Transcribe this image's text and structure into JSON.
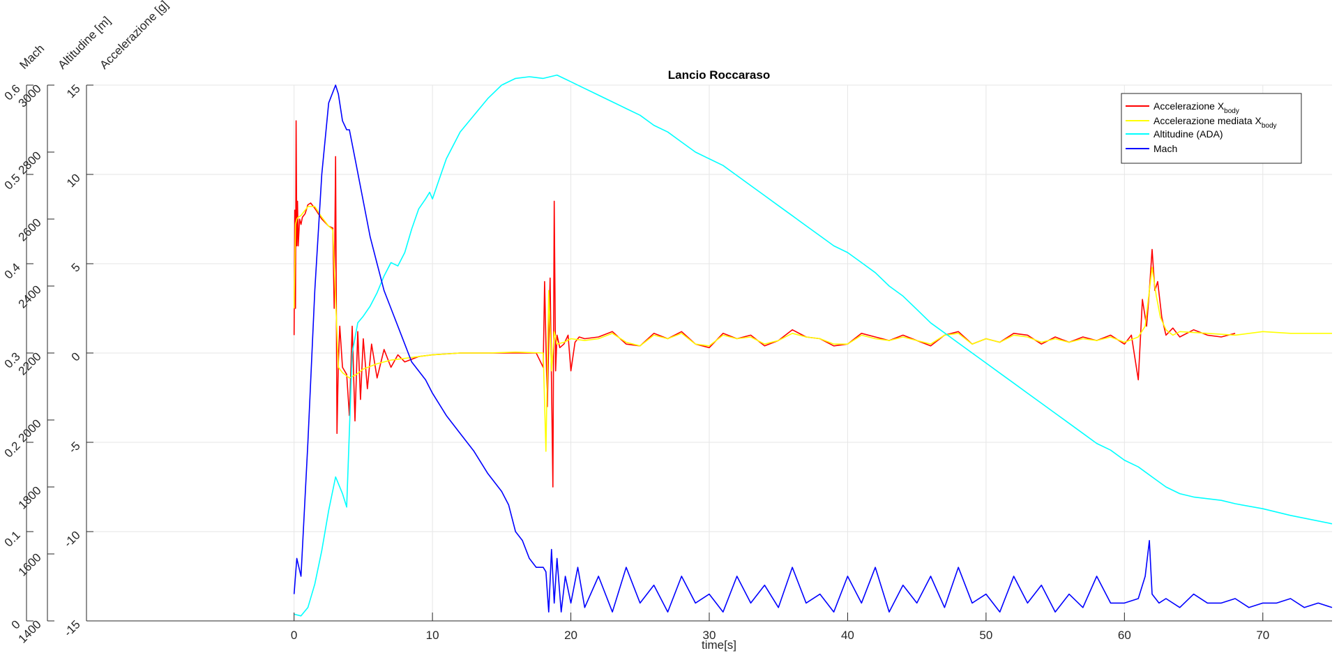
{
  "chart_data": {
    "type": "line",
    "title": "Lancio Roccaraso",
    "xlabel": "time[s]",
    "xlim": [
      -15,
      75
    ],
    "xticks": [
      0,
      10,
      20,
      30,
      40,
      50,
      60,
      70
    ],
    "grid": true,
    "legend_position": "top-right",
    "axes": {
      "accel": {
        "label": "Accelerazione [g]",
        "lim": [
          -15,
          15
        ],
        "ticks": [
          -15,
          -10,
          -5,
          0,
          5,
          10,
          15
        ]
      },
      "alt": {
        "label": "Altitudine [m]",
        "lim": [
          1400,
          3000
        ],
        "ticks": [
          1400,
          1600,
          1800,
          2000,
          2200,
          2400,
          2600,
          2800,
          3000
        ]
      },
      "mach": {
        "label": "Mach",
        "lim": [
          0,
          0.6
        ],
        "ticks": [
          0,
          0.1,
          0.2,
          0.3,
          0.4,
          0.5,
          0.6
        ]
      }
    },
    "legend": [
      {
        "name": "Accelerazione X",
        "sub": "body",
        "color": "#ff0000"
      },
      {
        "name": "Accelerazione mediata X",
        "sub": "body",
        "color": "#ffff00"
      },
      {
        "name": "Altitudine (ADA)",
        "sub": "",
        "color": "#00ffff"
      },
      {
        "name": "Mach",
        "sub": "",
        "color": "#0000ff"
      }
    ],
    "series": [
      {
        "name": "Accelerazione X",
        "axis": "accel",
        "color": "#ff0000",
        "x": [
          0.0,
          0.05,
          0.1,
          0.15,
          0.2,
          0.25,
          0.3,
          0.4,
          0.5,
          0.6,
          0.8,
          1.0,
          1.2,
          1.5,
          2.0,
          2.5,
          2.8,
          2.9,
          3.0,
          3.1,
          3.2,
          3.3,
          3.5,
          3.8,
          4.0,
          4.2,
          4.4,
          4.6,
          4.8,
          5.0,
          5.3,
          5.6,
          6.0,
          6.5,
          7.0,
          7.5,
          8.0,
          9.0,
          10.0,
          12.0,
          14.0,
          16.0,
          17.5,
          18.0,
          18.1,
          18.3,
          18.5,
          18.7,
          18.8,
          18.9,
          19.0,
          19.2,
          19.5,
          19.8,
          20.0,
          20.3,
          20.6,
          21.0,
          22.0,
          23.0,
          24.0,
          25.0,
          26.0,
          27.0,
          28.0,
          29.0,
          30.0,
          31.0,
          32.0,
          33.0,
          34.0,
          35.0,
          36.0,
          37.0,
          38.0,
          39.0,
          40.0,
          41.0,
          42.0,
          43.0,
          44.0,
          45.0,
          46.0,
          47.0,
          48.0,
          49.0,
          50.0,
          51.0,
          52.0,
          53.0,
          54.0,
          55.0,
          56.0,
          57.0,
          58.0,
          59.0,
          60.0,
          60.5,
          61.0,
          61.3,
          61.6,
          61.8,
          62.0,
          62.2,
          62.4,
          62.7,
          63.0,
          63.5,
          64.0,
          65.0,
          66.0,
          67.0,
          68.0
        ],
        "y": [
          1.0,
          8.0,
          2.5,
          13.0,
          6.0,
          8.5,
          6.0,
          7.5,
          7.2,
          7.6,
          7.8,
          8.3,
          8.4,
          8.1,
          7.5,
          7.1,
          7.0,
          2.5,
          11.0,
          -4.5,
          -0.5,
          1.5,
          -0.8,
          -1.2,
          -3.5,
          1.5,
          -3.8,
          1.2,
          -2.6,
          0.8,
          -2.0,
          0.5,
          -1.4,
          0.2,
          -0.8,
          -0.1,
          -0.5,
          -0.2,
          -0.1,
          0.0,
          0.0,
          0.0,
          0.0,
          -0.8,
          4.0,
          -3.0,
          4.2,
          -7.5,
          8.5,
          -1.0,
          1.0,
          0.3,
          0.5,
          1.0,
          -1.0,
          0.6,
          0.9,
          0.8,
          0.9,
          1.2,
          0.5,
          0.4,
          1.1,
          0.8,
          1.2,
          0.5,
          0.3,
          1.1,
          0.8,
          1.0,
          0.4,
          0.7,
          1.3,
          0.9,
          0.8,
          0.4,
          0.5,
          1.1,
          0.9,
          0.7,
          1.0,
          0.7,
          0.4,
          1.0,
          1.2,
          0.5,
          0.8,
          0.6,
          1.1,
          1.0,
          0.5,
          0.9,
          0.6,
          0.9,
          0.7,
          1.0,
          0.5,
          1.0,
          -1.5,
          3.0,
          1.5,
          3.5,
          5.8,
          3.5,
          4.0,
          2.0,
          1.0,
          1.4,
          0.9,
          1.3,
          1.0,
          0.9,
          1.1
        ]
      },
      {
        "name": "Accelerazione mediata X",
        "axis": "accel",
        "color": "#ffff00",
        "x": [
          0.0,
          0.1,
          0.2,
          0.3,
          0.5,
          1.0,
          1.5,
          2.0,
          2.5,
          2.8,
          3.0,
          3.2,
          3.5,
          4.0,
          4.5,
          5.0,
          6.0,
          7.0,
          8.0,
          9.0,
          10.0,
          12.0,
          14.0,
          16.0,
          18.0,
          18.2,
          18.4,
          18.6,
          18.8,
          19.0,
          19.5,
          20.0,
          21.0,
          22.0,
          23.0,
          24.0,
          25.0,
          26.0,
          27.0,
          28.0,
          29.0,
          30.0,
          31.0,
          32.0,
          33.0,
          34.0,
          35.0,
          36.0,
          37.0,
          38.0,
          39.0,
          40.0,
          41.0,
          42.0,
          43.0,
          44.0,
          45.0,
          46.0,
          47.0,
          48.0,
          49.0,
          50.0,
          51.0,
          52.0,
          53.0,
          54.0,
          55.0,
          56.0,
          57.0,
          58.0,
          59.0,
          60.0,
          61.0,
          61.5,
          62.0,
          62.3,
          62.6,
          63.0,
          63.5,
          64.0,
          66.0,
          68.0,
          70.0,
          72.0,
          75.0
        ],
        "y": [
          2.5,
          7.2,
          7.5,
          7.6,
          7.7,
          8.2,
          8.2,
          7.6,
          7.1,
          6.9,
          3.0,
          -0.8,
          -1.1,
          -1.4,
          -1.2,
          -0.9,
          -0.6,
          -0.4,
          -0.3,
          -0.2,
          -0.1,
          0.0,
          0.0,
          0.05,
          0.0,
          -5.5,
          3.5,
          -1.0,
          1.2,
          0.5,
          0.6,
          0.8,
          0.7,
          0.8,
          1.1,
          0.6,
          0.4,
          1.0,
          0.8,
          1.1,
          0.5,
          0.4,
          1.0,
          0.8,
          0.9,
          0.5,
          0.7,
          1.1,
          0.9,
          0.8,
          0.5,
          0.5,
          1.0,
          0.8,
          0.7,
          0.9,
          0.7,
          0.5,
          1.0,
          1.1,
          0.5,
          0.8,
          0.6,
          1.0,
          0.9,
          0.6,
          0.8,
          0.6,
          0.8,
          0.7,
          0.9,
          0.6,
          0.9,
          1.5,
          4.8,
          3.2,
          2.0,
          1.3,
          1.0,
          1.2,
          1.1,
          1.0,
          1.2,
          1.1,
          1.1
        ]
      },
      {
        "name": "Altitudine (ADA)",
        "axis": "alt",
        "color": "#00ffff",
        "x": [
          0.0,
          0.5,
          1.0,
          1.5,
          2.0,
          2.5,
          3.0,
          3.5,
          3.8,
          4.2,
          4.6,
          5.0,
          5.5,
          6.0,
          6.5,
          7.0,
          7.5,
          8.0,
          8.5,
          9.0,
          9.5,
          9.8,
          10.0,
          10.5,
          11.0,
          12.0,
          13.0,
          14.0,
          15.0,
          16.0,
          17.0,
          18.0,
          19.0,
          19.5,
          20.0,
          21.0,
          22.0,
          23.0,
          24.0,
          25.0,
          26.0,
          27.0,
          28.0,
          29.0,
          30.0,
          31.0,
          32.0,
          33.0,
          34.0,
          35.0,
          36.0,
          37.0,
          38.0,
          39.0,
          40.0,
          41.0,
          42.0,
          43.0,
          44.0,
          45.0,
          46.0,
          47.0,
          48.0,
          49.0,
          50.0,
          51.0,
          52.0,
          53.0,
          54.0,
          55.0,
          56.0,
          57.0,
          58.0,
          59.0,
          60.0,
          61.0,
          62.0,
          63.0,
          64.0,
          65.0,
          66.0,
          67.0,
          68.0,
          70.0,
          72.0,
          75.0
        ],
        "y": [
          1420,
          1415,
          1440,
          1510,
          1610,
          1730,
          1830,
          1780,
          1740,
          2200,
          2290,
          2310,
          2340,
          2380,
          2430,
          2470,
          2460,
          2500,
          2570,
          2630,
          2660,
          2680,
          2660,
          2720,
          2780,
          2860,
          2910,
          2960,
          3000,
          3020,
          3025,
          3020,
          3030,
          3020,
          3010,
          2990,
          2970,
          2950,
          2930,
          2910,
          2880,
          2860,
          2830,
          2800,
          2780,
          2760,
          2730,
          2700,
          2670,
          2640,
          2610,
          2580,
          2550,
          2520,
          2500,
          2470,
          2440,
          2400,
          2370,
          2330,
          2290,
          2260,
          2230,
          2200,
          2170,
          2140,
          2110,
          2080,
          2050,
          2020,
          1990,
          1960,
          1930,
          1910,
          1880,
          1860,
          1830,
          1800,
          1780,
          1770,
          1765,
          1760,
          1750,
          1735,
          1715,
          1690
        ]
      },
      {
        "name": "Mach",
        "axis": "mach",
        "color": "#0000ff",
        "x": [
          0.0,
          0.2,
          0.5,
          1.0,
          1.5,
          2.0,
          2.5,
          3.0,
          3.2,
          3.5,
          3.8,
          4.0,
          4.5,
          5.0,
          5.5,
          6.0,
          6.5,
          7.0,
          7.5,
          8.0,
          8.5,
          9.0,
          9.5,
          10.0,
          11.0,
          12.0,
          13.0,
          14.0,
          15.0,
          15.5,
          16.0,
          16.5,
          17.0,
          17.5,
          18.0,
          18.2,
          18.4,
          18.6,
          18.8,
          19.0,
          19.3,
          19.6,
          20.0,
          20.5,
          21.0,
          22.0,
          23.0,
          24.0,
          25.0,
          26.0,
          27.0,
          28.0,
          29.0,
          30.0,
          31.0,
          32.0,
          33.0,
          34.0,
          35.0,
          36.0,
          37.0,
          38.0,
          39.0,
          40.0,
          41.0,
          42.0,
          43.0,
          44.0,
          45.0,
          46.0,
          47.0,
          48.0,
          49.0,
          50.0,
          51.0,
          52.0,
          53.0,
          54.0,
          55.0,
          56.0,
          57.0,
          58.0,
          59.0,
          60.0,
          61.0,
          61.5,
          61.8,
          62.0,
          62.5,
          63.0,
          64.0,
          65.0,
          66.0,
          67.0,
          68.0,
          69.0,
          70.0,
          71.0,
          72.0,
          73.0,
          74.0,
          75.0
        ],
        "y": [
          0.03,
          0.07,
          0.05,
          0.2,
          0.37,
          0.5,
          0.58,
          0.6,
          0.59,
          0.56,
          0.55,
          0.55,
          0.51,
          0.47,
          0.43,
          0.4,
          0.37,
          0.35,
          0.33,
          0.31,
          0.29,
          0.28,
          0.27,
          0.255,
          0.23,
          0.21,
          0.19,
          0.165,
          0.145,
          0.13,
          0.1,
          0.09,
          0.07,
          0.06,
          0.06,
          0.055,
          0.01,
          0.08,
          0.02,
          0.07,
          0.01,
          0.05,
          0.02,
          0.06,
          0.015,
          0.05,
          0.01,
          0.06,
          0.02,
          0.04,
          0.01,
          0.05,
          0.02,
          0.03,
          0.01,
          0.05,
          0.02,
          0.04,
          0.015,
          0.06,
          0.02,
          0.03,
          0.01,
          0.05,
          0.02,
          0.06,
          0.01,
          0.04,
          0.02,
          0.05,
          0.015,
          0.06,
          0.02,
          0.03,
          0.01,
          0.05,
          0.02,
          0.04,
          0.01,
          0.03,
          0.015,
          0.05,
          0.02,
          0.02,
          0.025,
          0.05,
          0.09,
          0.03,
          0.02,
          0.025,
          0.015,
          0.03,
          0.02,
          0.02,
          0.025,
          0.015,
          0.02,
          0.02,
          0.025,
          0.015,
          0.02,
          0.015
        ]
      }
    ]
  }
}
